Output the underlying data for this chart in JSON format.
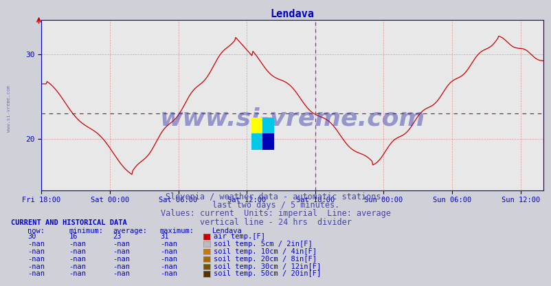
{
  "title": "Lendava",
  "title_color": "#0000cc",
  "bg_color": "#d0d0d8",
  "plot_bg_color": "#e8e8e8",
  "line_color": "#cc0000",
  "avg_line_color": "#cc0000",
  "avg_value": 23.0,
  "divider_color": "#cc00cc",
  "right_edge_color": "#ff44ff",
  "grid_color": "#cc0000",
  "grid_alpha": 0.35,
  "axis_color": "#0000cc",
  "tick_color": "#0000cc",
  "ylim": [
    14,
    34
  ],
  "yticks": [
    20,
    30
  ],
  "subtitle_lines": [
    "Slovenia / weather data - automatic stations.",
    "last two days / 5 minutes.",
    "Values: current  Units: imperial  Line: average",
    "vertical line - 24 hrs  divider"
  ],
  "subtitle_color": "#4444aa",
  "subtitle_fontsize": 8.5,
  "watermark_text": "www.si-vreme.com",
  "watermark_color": "#3333aa",
  "watermark_alpha": 0.45,
  "watermark_fontsize": 26,
  "left_label": "www.si-vreme.com",
  "left_label_color": "#4444aa",
  "table_header_color": "#0000cc",
  "table_data_color": "#0000cc",
  "xtick_labels": [
    "Fri 18:00",
    "Sat 00:00",
    "Sat 06:00",
    "Sat 12:00",
    "Sat 18:00",
    "Sun 00:00",
    "Sun 06:00",
    "Sun 12:00"
  ],
  "xtick_positions": [
    0,
    6,
    12,
    18,
    24,
    30,
    36,
    42
  ],
  "divider_x": 24,
  "total_hours": 44,
  "now_val": "30",
  "min_val": "16",
  "avg_val": "23",
  "max_val": "31",
  "legend_items": [
    {
      "label": "air temp.[F]",
      "color": "#cc0000"
    },
    {
      "label": "soil temp. 5cm / 2in[F]",
      "color": "#bbbbbb"
    },
    {
      "label": "soil temp. 10cm / 4in[F]",
      "color": "#cc7700"
    },
    {
      "label": "soil temp. 20cm / 8in[F]",
      "color": "#aa6600"
    },
    {
      "label": "soil temp. 30cm / 12in[F]",
      "color": "#775500"
    },
    {
      "label": "soil temp. 50cm / 20in[F]",
      "color": "#553300"
    }
  ],
  "row_data": [
    [
      "30",
      "16",
      "23",
      "31"
    ],
    [
      "-nan",
      "-nan",
      "-nan",
      "-nan"
    ],
    [
      "-nan",
      "-nan",
      "-nan",
      "-nan"
    ],
    [
      "-nan",
      "-nan",
      "-nan",
      "-nan"
    ],
    [
      "-nan",
      "-nan",
      "-nan",
      "-nan"
    ],
    [
      "-nan",
      "-nan",
      "-nan",
      "-nan"
    ]
  ]
}
